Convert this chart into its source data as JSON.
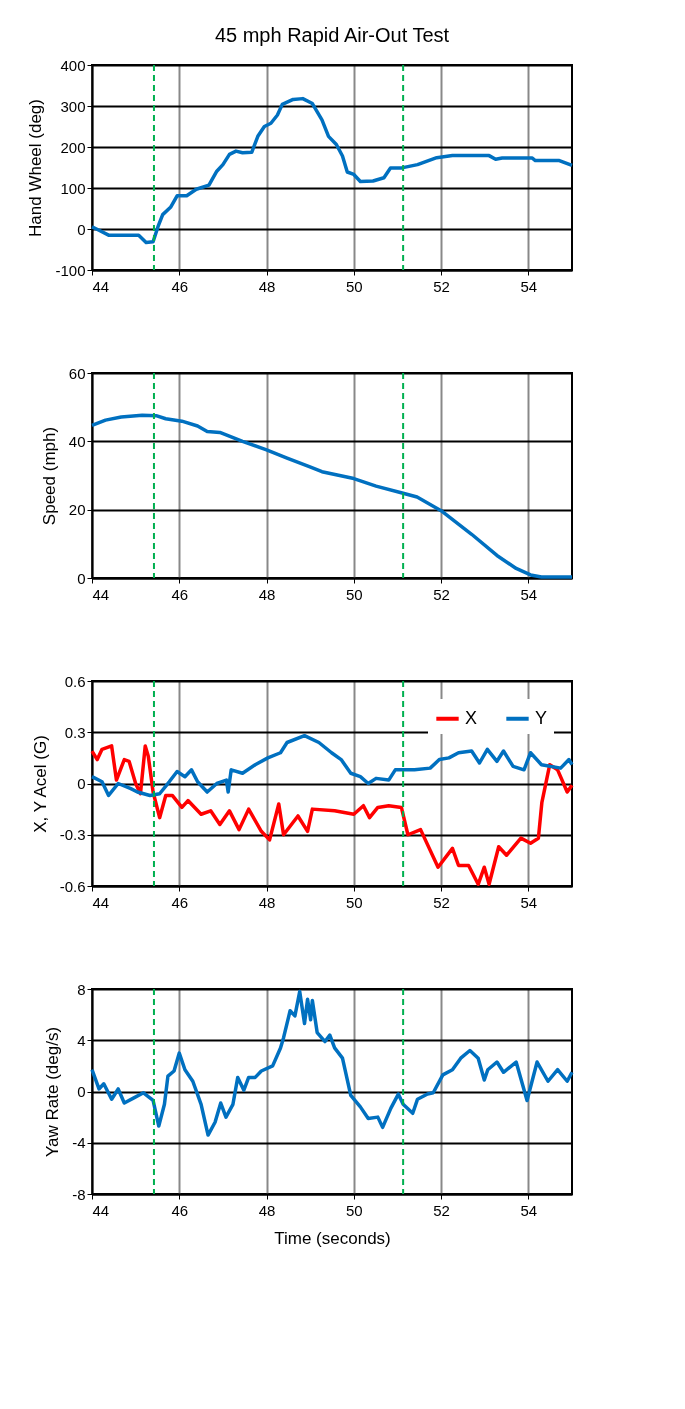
{
  "chart_data": [
    {
      "type": "line",
      "title": "45 mph Rapid Air-Out Test",
      "ylabel": "Hand Wheel (deg)",
      "xlim": [
        44,
        55
      ],
      "xticks": [
        44,
        46,
        48,
        50,
        52,
        54
      ],
      "ylim": [
        -100,
        400
      ],
      "yticks": [
        -100,
        0,
        100,
        200,
        300,
        400
      ],
      "grid": true,
      "line_style": "solid",
      "marker": "none",
      "series": [
        {
          "color": "#0070c0",
          "x": [
            44,
            44.16,
            44.38,
            45.07,
            45.24,
            45.4,
            45.51,
            45.62,
            45.8,
            45.95,
            46.17,
            46.39,
            46.68,
            46.86,
            47.0,
            47.15,
            47.3,
            47.45,
            47.66,
            47.8,
            47.95,
            48.1,
            48.25,
            48.36,
            48.61,
            48.83,
            49.05,
            49.27,
            49.42,
            49.6,
            49.74,
            49.85,
            50.0,
            50.15,
            50.44,
            50.69,
            50.84,
            51.1,
            51.46,
            51.9,
            52.26,
            53.1,
            53.25,
            53.4,
            54.09,
            54.16,
            54.71,
            55
          ],
          "values": [
            5,
            -3,
            -15,
            -15,
            -33,
            -31,
            5,
            35,
            53,
            81,
            81,
            97,
            107,
            141,
            157,
            182,
            190,
            186,
            187,
            226,
            250,
            258,
            278,
            304,
            316,
            318,
            306,
            266,
            226,
            206,
            178,
            139,
            133,
            116,
            117,
            125,
            149,
            149,
            157,
            174,
            179,
            179,
            170,
            173,
            173,
            167,
            167,
            155
          ]
        }
      ],
      "ref_lines": [
        {
          "axis": "x",
          "value": 45.42,
          "color": "#00b050",
          "line_style": "dashed"
        },
        {
          "axis": "x",
          "value": 51.13,
          "color": "#00b050",
          "line_style": "dashed"
        }
      ]
    },
    {
      "type": "line",
      "ylabel": "Speed (mph)",
      "xlim": [
        44,
        55
      ],
      "xticks": [
        44,
        46,
        48,
        50,
        52,
        54
      ],
      "ylim": [
        0,
        60
      ],
      "yticks": [
        0,
        20,
        40,
        60
      ],
      "grid": true,
      "line_style": "solid",
      "marker": "none",
      "series": [
        {
          "color": "#0070c0",
          "x": [
            44,
            44.31,
            44.67,
            45.15,
            45.47,
            45.69,
            46.06,
            46.42,
            46.64,
            46.93,
            47.45,
            48.0,
            48.47,
            48.98,
            49.27,
            50.0,
            50.51,
            51.13,
            51.45,
            52.0,
            52.7,
            53.28,
            53.72,
            54.05,
            54.3,
            55
          ],
          "values": [
            44.7,
            46.2,
            47.1,
            47.6,
            47.5,
            46.6,
            45.9,
            44.5,
            42.9,
            42.6,
            40.0,
            37.5,
            35.1,
            32.6,
            31.1,
            29.1,
            26.9,
            24.8,
            23.7,
            19.7,
            12.8,
            6.6,
            2.8,
            0.9,
            0.3,
            0.3
          ]
        }
      ],
      "ref_lines": [
        {
          "axis": "x",
          "value": 45.42,
          "color": "#00b050",
          "line_style": "dashed"
        },
        {
          "axis": "x",
          "value": 51.13,
          "color": "#00b050",
          "line_style": "dashed"
        }
      ]
    },
    {
      "type": "line",
      "ylabel": "X, Y Acel (G)",
      "xlim": [
        44,
        55
      ],
      "xticks": [
        44,
        46,
        48,
        50,
        52,
        54
      ],
      "ylim": [
        -0.6,
        0.6
      ],
      "yticks": [
        -0.6,
        -0.3,
        0,
        0.3,
        0.6
      ],
      "grid": true,
      "legend": "top right",
      "line_style": "solid",
      "marker": "none",
      "series": [
        {
          "name": "X",
          "color": "#ff0000",
          "x": [
            44,
            44.12,
            44.23,
            44.45,
            44.56,
            44.74,
            44.85,
            45.0,
            45.11,
            45.22,
            45.29,
            45.4,
            45.55,
            45.69,
            45.84,
            46.06,
            46.2,
            46.5,
            46.72,
            46.93,
            47.15,
            47.37,
            47.59,
            47.88,
            48.07,
            48.28,
            48.39,
            48.72,
            48.94,
            49.05,
            49.56,
            50.0,
            50.22,
            50.36,
            50.55,
            50.8,
            51.09,
            51.24,
            51.53,
            51.93,
            52.26,
            52.4,
            52.63,
            52.85,
            52.99,
            53.1,
            53.32,
            53.5,
            53.83,
            54.05,
            54.23,
            54.31,
            54.49,
            54.67,
            54.89,
            55
          ],
          "values": [
            0.19,
            0.14,
            0.2,
            0.22,
            0.02,
            0.14,
            0.13,
            0.0,
            -0.06,
            0.22,
            0.16,
            -0.05,
            -0.2,
            -0.07,
            -0.07,
            -0.14,
            -0.1,
            -0.18,
            -0.16,
            -0.24,
            -0.16,
            -0.27,
            -0.15,
            -0.28,
            -0.33,
            -0.12,
            -0.3,
            -0.19,
            -0.28,
            -0.15,
            -0.16,
            -0.18,
            -0.13,
            -0.2,
            -0.14,
            -0.13,
            -0.14,
            -0.3,
            -0.27,
            -0.49,
            -0.38,
            -0.48,
            -0.48,
            -0.59,
            -0.49,
            -0.59,
            -0.37,
            -0.42,
            -0.32,
            -0.35,
            -0.32,
            -0.11,
            0.11,
            0.08,
            -0.05,
            -0.01
          ]
        },
        {
          "name": "Y",
          "color": "#0070c0",
          "x": [
            44,
            44.23,
            44.38,
            44.6,
            44.89,
            45.04,
            45.33,
            45.55,
            45.77,
            45.95,
            46.13,
            46.28,
            46.42,
            46.64,
            46.86,
            47.08,
            47.12,
            47.19,
            47.45,
            47.74,
            48.03,
            48.32,
            48.47,
            48.87,
            49.2,
            49.49,
            49.71,
            49.93,
            50.15,
            50.33,
            50.51,
            50.8,
            50.95,
            51.13,
            51.39,
            51.75,
            51.96,
            52.18,
            52.4,
            52.7,
            52.88,
            53.06,
            53.28,
            53.43,
            53.65,
            53.9,
            54.05,
            54.3,
            54.74,
            54.93,
            55
          ],
          "values": [
            0.04,
            0.01,
            -0.07,
            0.0,
            -0.03,
            -0.05,
            -0.07,
            -0.06,
            0.01,
            0.07,
            0.04,
            0.08,
            0.01,
            -0.05,
            0.0,
            0.02,
            -0.05,
            0.08,
            0.06,
            0.11,
            0.15,
            0.18,
            0.24,
            0.28,
            0.24,
            0.18,
            0.14,
            0.06,
            0.04,
            0.0,
            0.03,
            0.02,
            0.08,
            0.08,
            0.08,
            0.09,
            0.14,
            0.15,
            0.18,
            0.19,
            0.12,
            0.2,
            0.13,
            0.19,
            0.1,
            0.08,
            0.18,
            0.11,
            0.09,
            0.14,
            0.11
          ]
        }
      ],
      "ref_lines": [
        {
          "axis": "x",
          "value": 45.42,
          "color": "#00b050",
          "line_style": "dashed"
        },
        {
          "axis": "x",
          "value": 51.13,
          "color": "#00b050",
          "line_style": "dashed"
        }
      ]
    },
    {
      "type": "line",
      "xlabel": "Time (seconds)",
      "ylabel": "Yaw Rate (deg/s)",
      "xlim": [
        44,
        55
      ],
      "xticks": [
        44,
        46,
        48,
        50,
        52,
        54
      ],
      "ylim": [
        -8,
        8
      ],
      "yticks": [
        -8,
        -4,
        0,
        4,
        8
      ],
      "grid": true,
      "line_style": "solid",
      "marker": "none",
      "series": [
        {
          "color": "#0070c0",
          "x": [
            44,
            44.16,
            44.27,
            44.45,
            44.6,
            44.74,
            44.96,
            45.18,
            45.4,
            45.53,
            45.66,
            45.74,
            45.88,
            46.0,
            46.13,
            46.31,
            46.5,
            46.66,
            46.82,
            46.95,
            47.07,
            47.23,
            47.34,
            47.48,
            47.59,
            47.74,
            47.88,
            48.14,
            48.32,
            48.39,
            48.54,
            48.65,
            48.76,
            48.87,
            48.94,
            49.01,
            49.05,
            49.16,
            49.34,
            49.45,
            49.56,
            49.74,
            49.93,
            50.15,
            50.33,
            50.55,
            50.66,
            50.85,
            51.02,
            51.13,
            51.35,
            51.46,
            51.69,
            51.82,
            52.04,
            52.26,
            52.45,
            52.66,
            52.85,
            52.99,
            53.07,
            53.28,
            53.43,
            53.72,
            53.97,
            54.2,
            54.45,
            54.67,
            54.89,
            55
          ],
          "values": [
            1.7,
            0.2,
            0.6,
            -0.6,
            0.2,
            -0.9,
            -0.5,
            -0.1,
            -0.7,
            -2.7,
            -1.0,
            1.2,
            1.6,
            3.0,
            1.7,
            0.8,
            -1.0,
            -3.4,
            -2.4,
            -0.9,
            -2.0,
            -1.0,
            1.1,
            0.1,
            1.1,
            1.1,
            1.6,
            2.0,
            3.4,
            4.2,
            6.3,
            5.9,
            7.8,
            5.3,
            7.2,
            5.6,
            7.1,
            4.6,
            3.9,
            4.4,
            3.4,
            2.6,
            -0.3,
            -1.2,
            -2.1,
            -2.0,
            -2.8,
            -1.3,
            -0.2,
            -1.0,
            -1.7,
            -0.6,
            -0.2,
            -0.1,
            1.3,
            1.7,
            2.6,
            3.2,
            2.6,
            0.9,
            1.7,
            2.3,
            1.5,
            2.3,
            -0.7,
            2.3,
            0.8,
            1.7,
            0.8,
            1.5
          ]
        }
      ],
      "ref_lines": [
        {
          "axis": "x",
          "value": 45.42,
          "color": "#00b050",
          "line_style": "dashed"
        },
        {
          "axis": "x",
          "value": 51.13,
          "color": "#00b050",
          "line_style": "dashed"
        }
      ]
    }
  ]
}
